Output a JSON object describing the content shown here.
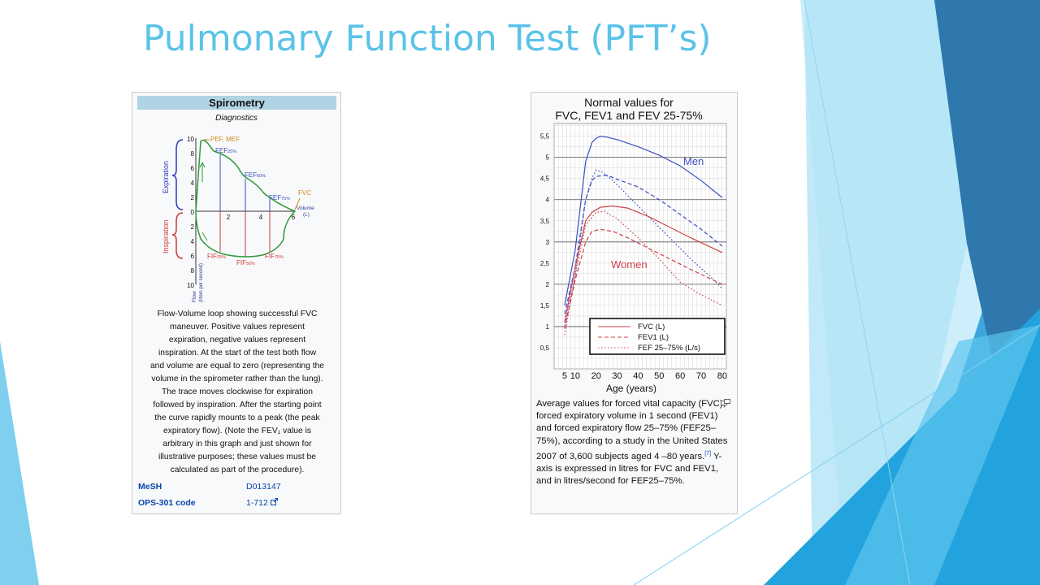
{
  "slide": {
    "title": "Pulmonary Function Test (PFT’s)"
  },
  "spirometry": {
    "header": "Spirometry",
    "subtitle": "Diagnostics",
    "graph": {
      "y_ticks_top": [
        "10",
        "8",
        "6",
        "4",
        "2",
        "0"
      ],
      "y_ticks_bottom": [
        "2",
        "4",
        "6",
        "8",
        "10"
      ],
      "x_ticks": [
        "2",
        "4",
        "6"
      ],
      "expiration_label": "Expiration",
      "inspiration_label": "Inspiration",
      "flow_axis_label": "Flow",
      "flow_axis_unit": "(liters per second)",
      "volume_label": "Volume",
      "volume_unit": "(L)",
      "pef_label": "PEF, MEF",
      "fvc_label": "FVC",
      "fef25_label": "FEF",
      "fef25_sub": "25%",
      "fef50_label": "FEF",
      "fef50_sub": "50%",
      "fef75_label": "FEF",
      "fef75_sub": "75%",
      "fif25_label": "FIF",
      "fif25_sub": "25%",
      "fif50_label": "FIF",
      "fif50_sub": "50%",
      "fif75_label": "FIF",
      "fif75_sub": "75%"
    },
    "caption_lines": [
      "Flow-Volume loop showing successful FVC",
      "maneuver. Positive values represent",
      "expiration, negative values represent",
      "inspiration. At the start of the test both flow",
      "and volume are equal to zero (representing the",
      "volume in the spirometer rather than the lung).",
      "The trace moves clockwise for expiration",
      "followed by inspiration. After the starting point",
      "the curve rapidly mounts to a peak (the peak",
      "expiratory flow). (Note the FEV₁ value is",
      "arbitrary in this graph and just shown for",
      "illustrative purposes; these values must be",
      "calculated as part of the procedure)."
    ],
    "mesh_label": "MeSH",
    "mesh_value": "D013147",
    "ops_label": "OPS-301 code",
    "ops_value": "1-712"
  },
  "pft": {
    "caption_part1": "Average values for forced vital capacity (FVC), forced expiratory volume in 1 second (FEV1) and forced expiratory flow 25–75% (FEF25–75%), according to a study in the United States 2007 of 3,600 subjects aged 4 –80 years.",
    "caption_ref": "[7]",
    "caption_part2": " Y-axis is expressed in litres for FVC and FEV1, and in litres/second for FEF25–75%."
  },
  "chart_data": [
    {
      "type": "line",
      "title": "Normal values for FVC, FEV1 and FEV 25-75%",
      "xlabel": "Age (years)",
      "ylabel": "",
      "x_ticks": [
        10,
        20,
        30,
        40,
        50,
        60,
        70,
        80
      ],
      "x_ticks_extra": [
        5
      ],
      "y_ticks": [
        0.5,
        1,
        1.5,
        2,
        2.5,
        3,
        3.5,
        4,
        4.5,
        5,
        5.5
      ],
      "xlim": [
        0,
        82
      ],
      "ylim": [
        0,
        5.8
      ],
      "grid": true,
      "group_labels": [
        "Men",
        "Women"
      ],
      "legend_position": "bottom-right",
      "legend": [
        {
          "name": "FVC (L)",
          "style": "solid"
        },
        {
          "name": "FEV1 (L)",
          "style": "dashed"
        },
        {
          "name": "FEF 25–75% (L/s)",
          "style": "dotted"
        }
      ],
      "series": [
        {
          "name": "FVC (L)",
          "group": "Men",
          "color": "#3a4fc0",
          "style": "solid",
          "x": [
            5,
            10,
            15,
            18,
            20,
            22,
            25,
            30,
            40,
            50,
            60,
            70,
            80
          ],
          "y": [
            1.5,
            2.8,
            4.9,
            5.35,
            5.45,
            5.5,
            5.48,
            5.42,
            5.25,
            5.05,
            4.8,
            4.45,
            4.05
          ]
        },
        {
          "name": "FEV1 (L)",
          "group": "Men",
          "color": "#3a4fc0",
          "style": "dashed",
          "x": [
            5,
            10,
            15,
            18,
            20,
            25,
            30,
            40,
            50,
            60,
            70,
            80
          ],
          "y": [
            1.3,
            2.4,
            4.0,
            4.45,
            4.55,
            4.58,
            4.48,
            4.3,
            4.0,
            3.65,
            3.3,
            2.9
          ]
        },
        {
          "name": "FEF 25–75% (L/s)",
          "group": "Men",
          "color": "#3a4fc0",
          "style": "dotted",
          "x": [
            5,
            10,
            15,
            18,
            20,
            23,
            28,
            35,
            45,
            55,
            65,
            75,
            80
          ],
          "y": [
            1.0,
            2.2,
            4.0,
            4.5,
            4.7,
            4.65,
            4.45,
            4.1,
            3.6,
            3.1,
            2.6,
            2.15,
            1.9
          ]
        },
        {
          "name": "FVC (L)",
          "group": "Women",
          "color": "#d0404a",
          "style": "solid",
          "x": [
            5,
            10,
            15,
            18,
            22,
            28,
            35,
            45,
            55,
            65,
            80
          ],
          "y": [
            1.1,
            2.4,
            3.5,
            3.7,
            3.82,
            3.85,
            3.8,
            3.6,
            3.35,
            3.1,
            2.75
          ]
        },
        {
          "name": "FEV1 (L)",
          "group": "Women",
          "color": "#d0404a",
          "style": "dashed",
          "x": [
            5,
            10,
            15,
            18,
            22,
            28,
            35,
            45,
            55,
            65,
            80
          ],
          "y": [
            0.95,
            2.1,
            3.0,
            3.25,
            3.3,
            3.25,
            3.1,
            2.85,
            2.6,
            2.35,
            2.0
          ]
        },
        {
          "name": "FEF 25–75% (L/s)",
          "group": "Women",
          "color": "#d0404a",
          "style": "dotted",
          "x": [
            5,
            10,
            15,
            20,
            24,
            30,
            40,
            50,
            60,
            70,
            80
          ],
          "y": [
            0.8,
            2.2,
            3.4,
            3.7,
            3.72,
            3.55,
            3.1,
            2.6,
            2.05,
            1.75,
            1.5
          ]
        }
      ]
    }
  ]
}
